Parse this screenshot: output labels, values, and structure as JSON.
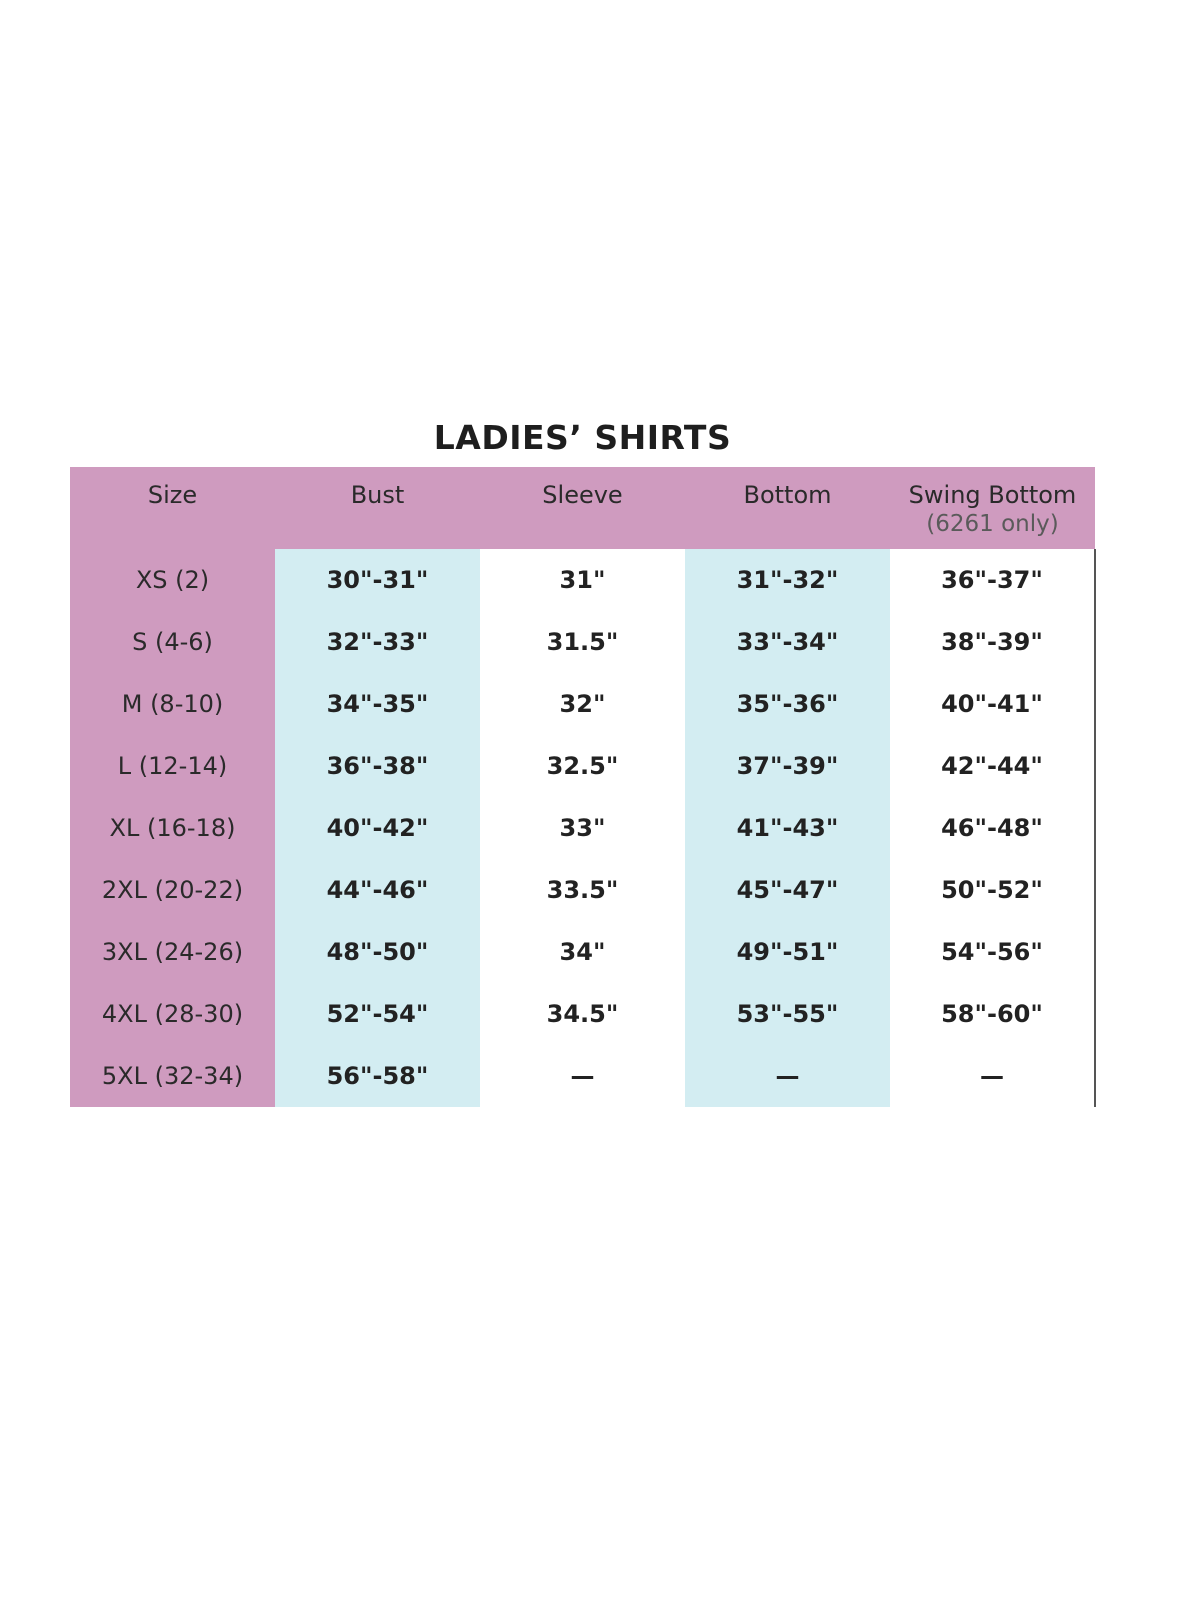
{
  "title": "LADIES’ SHIRTS",
  "colors": {
    "header": "#cf9bbf",
    "highlight_column": "#d3edf2",
    "text": "#222222"
  },
  "columns": [
    {
      "label": "Size",
      "sub": ""
    },
    {
      "label": "Bust",
      "sub": ""
    },
    {
      "label": "Sleeve",
      "sub": ""
    },
    {
      "label": "Bottom",
      "sub": ""
    },
    {
      "label": "Swing Bottom",
      "sub": "(6261 only)"
    }
  ],
  "rows": [
    [
      "XS (2)",
      "30\"-31\"",
      "31\"",
      "31\"-32\"",
      "36\"-37\""
    ],
    [
      "S (4-6)",
      "32\"-33\"",
      "31.5\"",
      "33\"-34\"",
      "38\"-39\""
    ],
    [
      "M (8-10)",
      "34\"-35\"",
      "32\"",
      "35\"-36\"",
      "40\"-41\""
    ],
    [
      "L (12-14)",
      "36\"-38\"",
      "32.5\"",
      "37\"-39\"",
      "42\"-44\""
    ],
    [
      "XL (16-18)",
      "40\"-42\"",
      "33\"",
      "41\"-43\"",
      "46\"-48\""
    ],
    [
      "2XL (20-22)",
      "44\"-46\"",
      "33.5\"",
      "45\"-47\"",
      "50\"-52\""
    ],
    [
      "3XL (24-26)",
      "48\"-50\"",
      "34\"",
      "49\"-51\"",
      "54\"-56\""
    ],
    [
      "4XL (28-30)",
      "52\"-54\"",
      "34.5\"",
      "53\"-55\"",
      "58\"-60\""
    ],
    [
      "5XL (32-34)",
      "56\"-58\"",
      "—",
      "—",
      "—"
    ]
  ]
}
